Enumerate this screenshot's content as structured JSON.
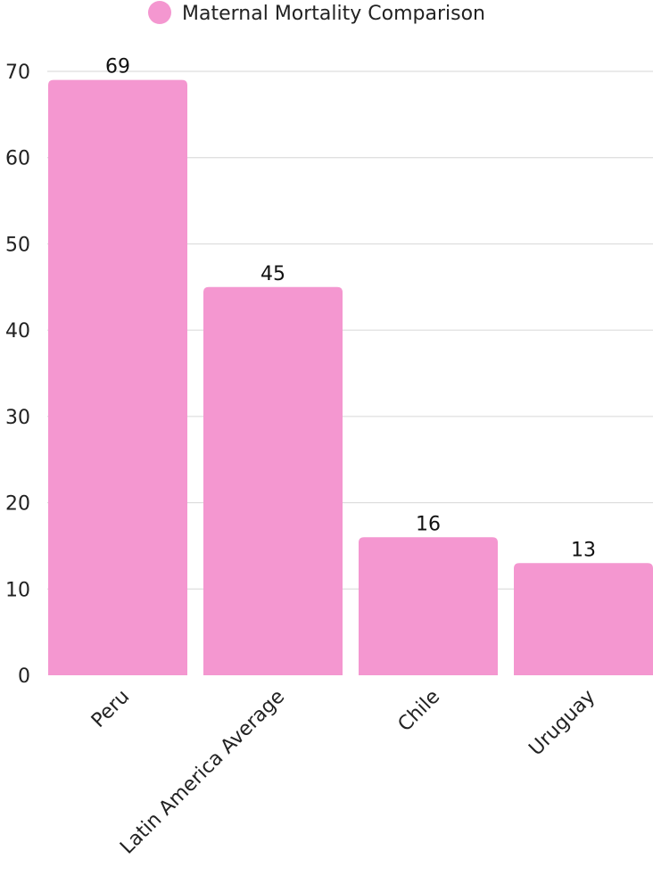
{
  "chart_data": {
    "type": "bar",
    "title": "",
    "xlabel": "",
    "ylabel": "",
    "categories": [
      "Peru",
      "Latin America Average",
      "Chile",
      "Uruguay"
    ],
    "series": [
      {
        "name": "Maternal Mortality Comparison",
        "values": [
          69,
          45,
          16,
          13
        ]
      }
    ],
    "ylim": [
      0,
      70
    ],
    "yticks": [
      0,
      10,
      20,
      30,
      40,
      50,
      60,
      70
    ],
    "grid": true,
    "legend": "top-center",
    "data_labels": true,
    "bar_color": "#F497D0"
  }
}
